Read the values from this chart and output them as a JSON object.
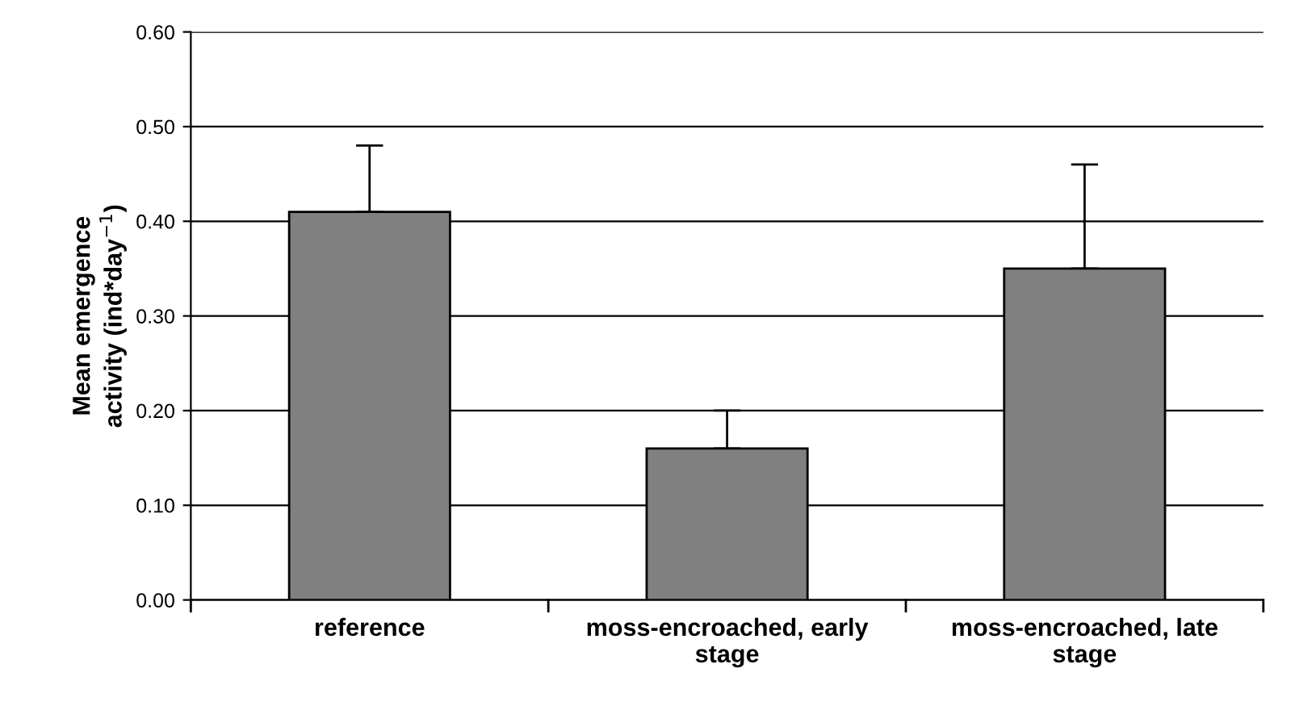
{
  "chart_data": {
    "type": "bar",
    "categories": [
      "reference",
      "moss-encroached, early\nstage",
      "moss-encroached, late\nstage"
    ],
    "values": [
      0.41,
      0.16,
      0.35
    ],
    "errors": [
      [
        0.41,
        0.48
      ],
      [
        0.16,
        0.2
      ],
      [
        0.35,
        0.46
      ]
    ],
    "color": "#808080",
    "ylabel": "Mean emergence\nactivity (ind*day$^{−1}$)",
    "ylim": [
      0,
      0.6
    ],
    "yticks": [
      {
        "value": 0,
        "label": "0.00"
      },
      {
        "value": 0.1,
        "label": "0.10"
      },
      {
        "value": 0.2,
        "label": "0.20"
      },
      {
        "value": 0.3,
        "label": "0.30"
      },
      {
        "value": 0.4,
        "label": "0.40"
      },
      {
        "value": 0.5,
        "label": "0.50"
      },
      {
        "value": 0.6,
        "label": "0.60"
      }
    ],
    "grid": "y",
    "legend": false
  }
}
